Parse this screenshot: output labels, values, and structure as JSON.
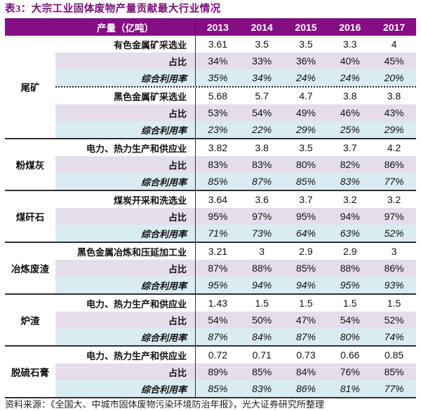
{
  "title": "表3：大宗工业固体废物产量贡献最大行业情况",
  "footer": "资料来源：《全国大、中城市固体废物污染环境防治年报》，光大证券研究所整理",
  "colors": {
    "title_text": "#7b0b7b",
    "header_bg": "#850e85",
    "header_text": "#ffffff",
    "share_row_bg": "#e6ddec",
    "utilization_row_bg": "#d9ecf2",
    "border": "#2f2f2f"
  },
  "table": {
    "unit_header": "产量（亿吨）",
    "years": [
      "2013",
      "2014",
      "2015",
      "2016",
      "2017"
    ],
    "row_labels": {
      "share": "占比",
      "utilization": "综合利用率"
    },
    "groups": [
      {
        "category": "尾矿",
        "blocks": [
          {
            "industry": "有色金属矿采选业",
            "output": [
              "3.61",
              "3.5",
              "3.5",
              "3.3",
              "4"
            ],
            "share": [
              "34%",
              "33%",
              "36%",
              "40%",
              "45%"
            ],
            "utilization": [
              "35%",
              "34%",
              "24%",
              "24%",
              "20%"
            ]
          },
          {
            "industry": "黑色金属矿采选业",
            "output": [
              "5.68",
              "5.7",
              "4.7",
              "3.8",
              "3.8"
            ],
            "share": [
              "53%",
              "54%",
              "49%",
              "46%",
              "43%"
            ],
            "utilization": [
              "23%",
              "22%",
              "29%",
              "25%",
              "29%"
            ]
          }
        ]
      },
      {
        "category": "粉煤灰",
        "blocks": [
          {
            "industry": "电力、热力生产和供应业",
            "output": [
              "3.82",
              "3.8",
              "3.5",
              "3.7",
              "4.2"
            ],
            "share": [
              "83%",
              "83%",
              "80%",
              "82%",
              "86%"
            ],
            "utilization": [
              "85%",
              "87%",
              "85%",
              "83%",
              "77%"
            ]
          }
        ]
      },
      {
        "category": "煤矸石",
        "blocks": [
          {
            "industry": "煤炭开采和洗选业",
            "output": [
              "3.64",
              "3.6",
              "3.7",
              "3.2",
              "3.2"
            ],
            "share": [
              "95%",
              "97%",
              "95%",
              "94%",
              "97%"
            ],
            "utilization": [
              "71%",
              "73%",
              "64%",
              "63%",
              "52%"
            ]
          }
        ]
      },
      {
        "category": "冶炼废渣",
        "blocks": [
          {
            "industry": "黑色金属冶炼和压延加工业",
            "output": [
              "3.21",
              "3",
              "2.9",
              "2.9",
              "3"
            ],
            "share": [
              "87%",
              "88%",
              "85%",
              "88%",
              "86%"
            ],
            "utilization": [
              "95%",
              "94%",
              "94%",
              "95%",
              "93%"
            ]
          }
        ]
      },
      {
        "category": "炉渣",
        "blocks": [
          {
            "industry": "电力、热力生产和供应业",
            "output": [
              "1.43",
              "1.5",
              "1.5",
              "1.5",
              "1.5"
            ],
            "share": [
              "54%",
              "50%",
              "47%",
              "54%",
              "52%"
            ],
            "utilization": [
              "87%",
              "84%",
              "87%",
              "80%",
              "74%"
            ]
          }
        ]
      },
      {
        "category": "脱硫石膏",
        "blocks": [
          {
            "industry": "电力、热力生产和供应业",
            "output": [
              "0.72",
              "0.71",
              "0.73",
              "0.66",
              "0.85"
            ],
            "share": [
              "89%",
              "85%",
              "84%",
              "76%",
              "85%"
            ],
            "utilization": [
              "85%",
              "83%",
              "86%",
              "81%",
              "77%"
            ]
          }
        ]
      }
    ]
  }
}
